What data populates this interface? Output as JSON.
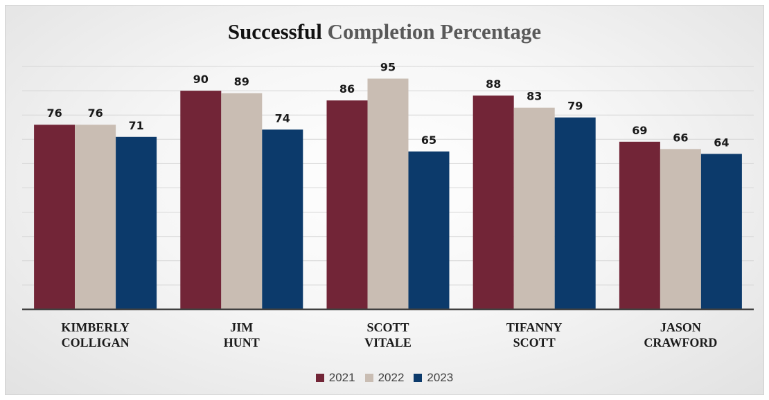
{
  "chart_data": {
    "type": "bar",
    "title": "Successful Completion Percentage",
    "categories": [
      [
        "KIMBERLY",
        "COLLIGAN"
      ],
      [
        "JIM",
        "HUNT"
      ],
      [
        "SCOTT",
        "VITALE"
      ],
      [
        "TIFANNY",
        "SCOTT"
      ],
      [
        "JASON",
        "CRAWFORD"
      ]
    ],
    "series": [
      {
        "name": "2021",
        "color": "#722537",
        "values": [
          76,
          90,
          86,
          88,
          69
        ]
      },
      {
        "name": "2022",
        "color": "#c9bdb3",
        "values": [
          76,
          89,
          95,
          83,
          66
        ]
      },
      {
        "name": "2023",
        "color": "#0c3a6b",
        "values": [
          71,
          74,
          65,
          79,
          64
        ]
      }
    ],
    "ylim": [
      0,
      100
    ],
    "grid": true,
    "legend": "bottom"
  }
}
